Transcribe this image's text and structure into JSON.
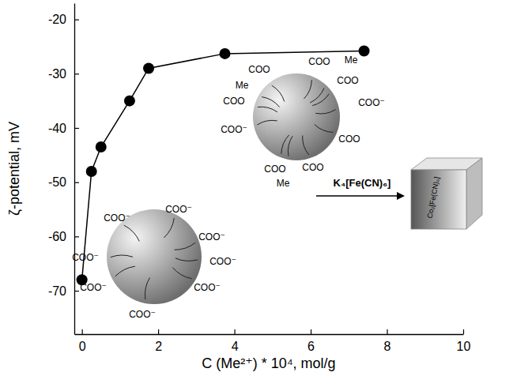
{
  "chart_data": {
    "type": "line",
    "x_label": "C (Me²⁺) * 10⁴, mol/g",
    "y_label": "ζ-potential, mV",
    "x": [
      0,
      0.25,
      0.5,
      1.25,
      1.75,
      3.75,
      7.4
    ],
    "values": [
      -68,
      -48,
      -43.5,
      -35,
      -29,
      -26.3,
      -25.8
    ],
    "color": "#000000",
    "marker": "circle",
    "line_style": "solid",
    "xlim": [
      -0.2,
      10
    ],
    "ylim": [
      -78,
      -17
    ],
    "xticks": [
      0,
      2,
      4,
      6,
      8,
      10
    ],
    "yticks": [
      -70,
      -60,
      -50,
      -40,
      -30,
      -20
    ],
    "annotations": [
      "COO⁻",
      "COO⁻",
      "COO⁻",
      "COO⁻",
      "COO⁻",
      "COO⁻",
      "COO⁻",
      "COO⁻",
      "COO",
      "COO",
      "Me",
      "Me",
      "COO",
      "COO",
      "COO⁻",
      "COO⁻",
      "COO",
      "COO",
      "Me",
      "COO",
      "K₄[Fe(CN)₆]",
      "Co₂[Fe(CN)₆]"
    ]
  }
}
